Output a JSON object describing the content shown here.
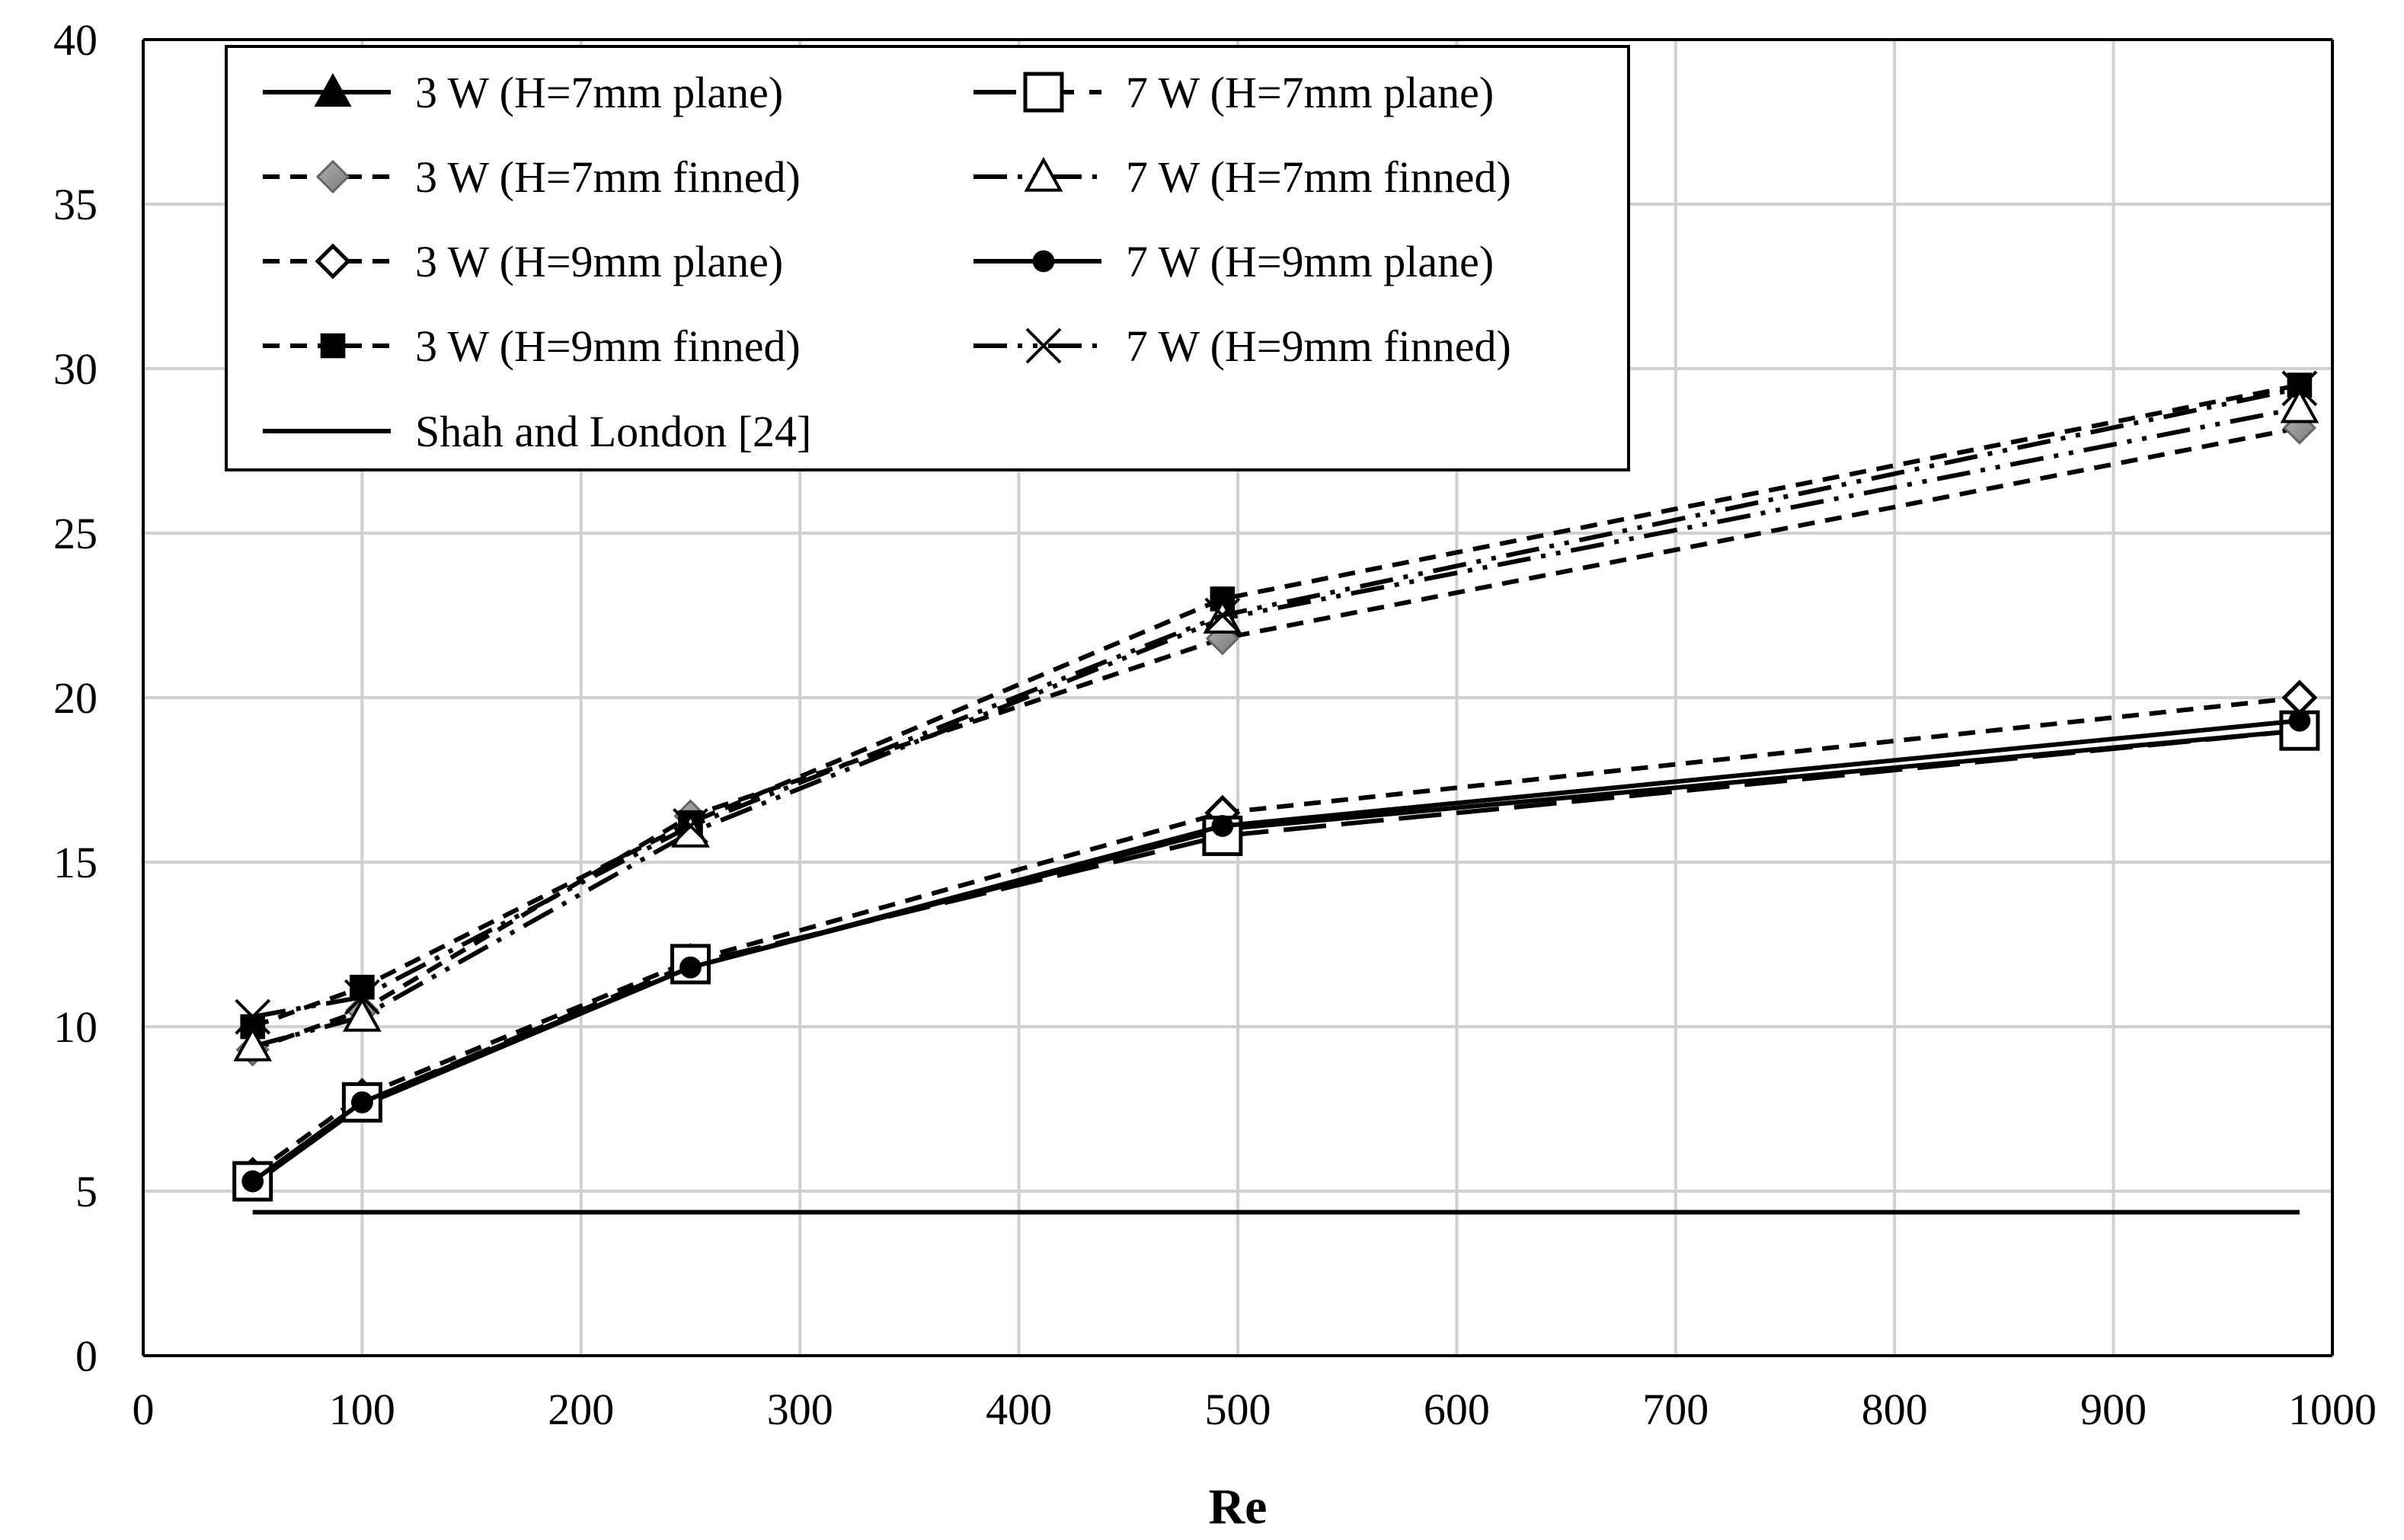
{
  "chart_data": {
    "type": "line",
    "title": "",
    "xlabel": "Re",
    "ylabel": "",
    "xlim": [
      0,
      1000
    ],
    "ylim": [
      0,
      40
    ],
    "xticks": [
      0,
      100,
      200,
      300,
      400,
      500,
      600,
      700,
      800,
      900,
      1000
    ],
    "yticks": [
      0,
      5,
      10,
      15,
      20,
      25,
      30,
      35,
      40
    ],
    "grid": true,
    "legend_position": "top-left",
    "series": [
      {
        "name": "3 W (H=7mm plane)",
        "marker": "filled-triangle",
        "dash": "solid",
        "color": "#000000",
        "x": [
          50,
          100,
          250,
          493,
          985
        ],
        "y": [
          5.2,
          7.6,
          11.8,
          16.0,
          19.0
        ]
      },
      {
        "name": "3 W (H=7mm finned)",
        "marker": "gray-diamond",
        "dash": "dashed",
        "color": "#000000",
        "x": [
          50,
          100,
          250,
          493,
          985
        ],
        "y": [
          9.3,
          10.5,
          16.4,
          21.8,
          28.2
        ]
      },
      {
        "name": "3 W (H=9mm plane)",
        "marker": "open-diamond",
        "dash": "dashed",
        "color": "#000000",
        "x": [
          50,
          100,
          250,
          493,
          985
        ],
        "y": [
          5.5,
          7.9,
          12.0,
          16.5,
          20.0
        ]
      },
      {
        "name": "3 W (H=9mm finned)",
        "marker": "filled-square",
        "dash": "dashed",
        "color": "#000000",
        "x": [
          50,
          100,
          250,
          493,
          985
        ],
        "y": [
          10.0,
          11.2,
          16.2,
          23.0,
          29.5
        ]
      },
      {
        "name": "7 W (H=7mm plane)",
        "marker": "open-square",
        "dash": "long-dash",
        "color": "#000000",
        "x": [
          50,
          100,
          250,
          493,
          985
        ],
        "y": [
          5.3,
          7.7,
          11.9,
          15.8,
          19.0
        ]
      },
      {
        "name": "7 W (H=7mm finned)",
        "marker": "open-triangle",
        "dash": "dash-dot-dot",
        "color": "#000000",
        "x": [
          50,
          100,
          250,
          493,
          985
        ],
        "y": [
          9.4,
          10.3,
          15.9,
          22.4,
          28.8
        ]
      },
      {
        "name": "7 W (H=9mm plane)",
        "marker": "filled-circle",
        "dash": "solid",
        "color": "#000000",
        "x": [
          50,
          100,
          250,
          493,
          985
        ],
        "y": [
          5.3,
          7.7,
          11.8,
          16.1,
          19.3
        ]
      },
      {
        "name": "7 W (H=9mm finned)",
        "marker": "cross",
        "dash": "dash-dot-dot",
        "color": "#000000",
        "x": [
          50,
          100,
          250,
          493,
          985
        ],
        "y": [
          10.3,
          10.9,
          16.1,
          22.5,
          29.4
        ]
      },
      {
        "name": "Shah and London [24]",
        "marker": "none",
        "dash": "solid",
        "color": "#000000",
        "x": [
          50,
          985
        ],
        "y": [
          4.36,
          4.36
        ]
      }
    ]
  }
}
